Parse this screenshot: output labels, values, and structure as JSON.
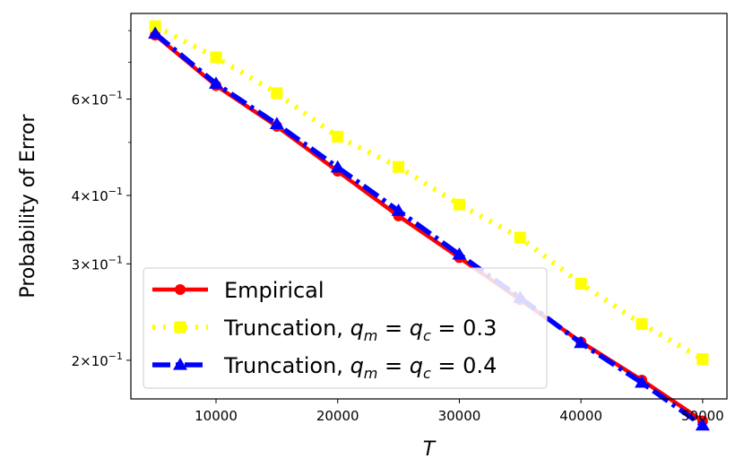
{
  "chart_data": {
    "type": "line",
    "xlabel": "T",
    "ylabel": "Probability of Error",
    "y_scale": "log",
    "xlim": [
      3000,
      52000
    ],
    "ylim": [
      0.17,
      0.86
    ],
    "grid": false,
    "legend_position": "lower-left",
    "x": [
      5000,
      10000,
      15000,
      20000,
      25000,
      30000,
      35000,
      40000,
      45000,
      50000
    ],
    "x_tick_labels": [
      "10000",
      "20000",
      "30000",
      "40000",
      "50000"
    ],
    "x_tick_values": [
      10000,
      20000,
      30000,
      40000,
      50000
    ],
    "y_tick_labels": [
      {
        "value": 0.2,
        "mant": "2",
        "exp": "−1"
      },
      {
        "value": 0.3,
        "mant": "3",
        "exp": "−1"
      },
      {
        "value": 0.4,
        "mant": "4",
        "exp": "−1"
      },
      {
        "value": 0.6,
        "mant": "6",
        "exp": "−1"
      }
    ],
    "series": [
      {
        "name_parts": [
          "Empirical",
          ""
        ],
        "color": "#ff0000",
        "line_style": "solid",
        "marker": "circle",
        "values": [
          0.785,
          0.635,
          0.535,
          0.443,
          0.367,
          0.308,
          0.258,
          0.216,
          0.184,
          0.155
        ]
      },
      {
        "name_parts": [
          "Truncation, ",
          "0.3"
        ],
        "color": "#ffff00",
        "line_style": "dotted",
        "marker": "square",
        "values": [
          0.815,
          0.715,
          0.615,
          0.512,
          0.451,
          0.385,
          0.335,
          0.276,
          0.233,
          0.201
        ]
      },
      {
        "name_parts": [
          "Truncation, ",
          "0.4"
        ],
        "color": "#0000ff",
        "line_style": "dashdot",
        "marker": "triangle",
        "values": [
          0.79,
          0.64,
          0.54,
          0.45,
          0.375,
          0.312,
          0.26,
          0.215,
          0.182,
          0.152
        ]
      }
    ]
  }
}
